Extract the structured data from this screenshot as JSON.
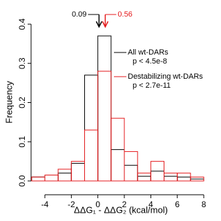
{
  "chart_data": {
    "type": "histogram",
    "ylabel": "Frequency",
    "xlabel": "ΔΔG₁ - ΔΔG₂ (kcal/mol)",
    "bins": [
      -5,
      -4,
      -3,
      -2,
      -1,
      0,
      1,
      2,
      3,
      4,
      5,
      6,
      7,
      8
    ],
    "series": [
      {
        "name": "All wt-DARs",
        "note": "p < 4.5e-8",
        "color": "#000000",
        "values": [
          0.01,
          0.015,
          0.02,
          0.045,
          0.27,
          0.37,
          0.08,
          0.04,
          0.012,
          0.025,
          0.012,
          0.01,
          0.005
        ]
      },
      {
        "name": "Destabilizing wt-DARs",
        "note": "p < 2.7e-11",
        "color": "#e41a1c",
        "values": [
          0.01,
          0.015,
          0.03,
          0.05,
          0.13,
          0.28,
          0.16,
          0.075,
          0.02,
          0.05,
          0.02,
          0.02,
          0.01
        ]
      }
    ],
    "annotations": [
      {
        "text": "0.09",
        "x": 0.09,
        "color": "#000000"
      },
      {
        "text": "0.56",
        "x": 0.56,
        "color": "#e41a1c"
      }
    ],
    "xlim": [
      -5,
      8.3
    ],
    "ylim": [
      0,
      0.4
    ],
    "xticks": [
      -4,
      -2,
      0,
      2,
      4,
      6,
      8
    ],
    "yticks": [
      {
        "value": 0,
        "label": "0.0"
      },
      0.1,
      0.2,
      0.3,
      0.4
    ]
  }
}
